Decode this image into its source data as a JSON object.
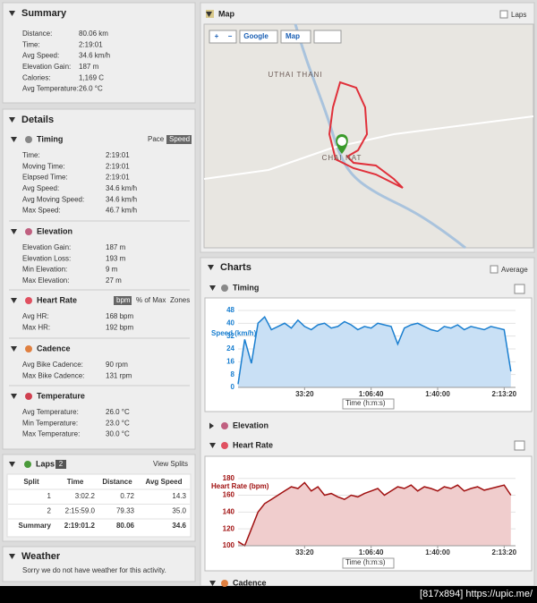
{
  "summary": {
    "title": "Summary",
    "rows": [
      {
        "label": "Distance:",
        "value": "80.06 km"
      },
      {
        "label": "Time:",
        "value": "2:19:01"
      },
      {
        "label": "Avg Speed:",
        "value": "34.6 km/h"
      },
      {
        "label": "Elevation Gain:",
        "value": "187 m"
      },
      {
        "label": "Calories:",
        "value": "1,169 C"
      },
      {
        "label": "Avg Temperature:",
        "value": "26.0 °C"
      }
    ]
  },
  "details": {
    "title": "Details",
    "sections": [
      {
        "title": "Timing",
        "options": [
          "Pace",
          "Speed"
        ],
        "rows": [
          {
            "label": "Time:",
            "value": "2:19:01"
          },
          {
            "label": "Moving Time:",
            "value": "2:19:01"
          },
          {
            "label": "Elapsed Time:",
            "value": "2:19:01"
          },
          {
            "label": "Avg Speed:",
            "value": "34.6 km/h"
          },
          {
            "label": "Avg Moving Speed:",
            "value": "34.6 km/h"
          },
          {
            "label": "Max Speed:",
            "value": "46.7 km/h"
          }
        ]
      },
      {
        "title": "Elevation",
        "options": [],
        "rows": [
          {
            "label": "Elevation Gain:",
            "value": "187 m"
          },
          {
            "label": "Elevation Loss:",
            "value": "193 m"
          },
          {
            "label": "Min Elevation:",
            "value": "9 m"
          },
          {
            "label": "Max Elevation:",
            "value": "27 m"
          }
        ]
      },
      {
        "title": "Heart Rate",
        "options": [
          "bpm",
          "% of Max",
          "Zones"
        ],
        "rows": [
          {
            "label": "Avg HR:",
            "value": "168 bpm"
          },
          {
            "label": "Max HR:",
            "value": "192 bpm"
          }
        ]
      },
      {
        "title": "Cadence",
        "options": [],
        "rows": [
          {
            "label": "Avg Bike Cadence:",
            "value": "90 rpm"
          },
          {
            "label": "Max Bike Cadence:",
            "value": "131 rpm"
          }
        ]
      },
      {
        "title": "Temperature",
        "options": [],
        "rows": [
          {
            "label": "Avg Temperature:",
            "value": "26.0 °C"
          },
          {
            "label": "Min Temperature:",
            "value": "23.0 °C"
          },
          {
            "label": "Max Temperature:",
            "value": "30.0 °C"
          }
        ]
      }
    ]
  },
  "laps": {
    "title": "Laps",
    "count": 2,
    "link": "View Splits",
    "columns": [
      "Split",
      "Time",
      "Distance",
      "Avg Speed"
    ],
    "rows": [
      [
        "1",
        "3:02.2",
        "0.72",
        "14.3"
      ],
      [
        "2",
        "2:15:59.0",
        "79.33",
        "35.0"
      ],
      [
        "Summary",
        "2:19:01.2",
        "80.06",
        "34.6"
      ]
    ]
  },
  "weather": {
    "title": "Weather",
    "message": "Sorry we do not have weather for this activity."
  },
  "map": {
    "title": "Map",
    "laps_label": "Laps",
    "controls": [
      "+",
      "−",
      "Google",
      "Map"
    ],
    "places": [
      "UTHAI THANI",
      "CHAI NAT"
    ]
  },
  "charts": {
    "title": "Charts",
    "average_label": "Average",
    "sections": [
      "Timing",
      "Elevation",
      "Heart Rate",
      "Cadence"
    ]
  },
  "chart_data": [
    {
      "type": "area",
      "ylabel": "Speed (km/h)",
      "xlabel": "Time (h:m:s)",
      "color": "#1a7fd0",
      "fill": "#c9e0f5",
      "x": [
        0,
        200,
        400,
        600,
        800,
        1000,
        1200,
        1400,
        1600,
        1800,
        2000,
        2200,
        2400,
        2600,
        2800,
        3000,
        3200,
        3400,
        3600,
        3800,
        4000,
        4200,
        4400,
        4600,
        4800,
        5000,
        5200,
        5400,
        5600,
        5800,
        6000,
        6200,
        6400,
        6600,
        6800,
        7000,
        7200,
        7400,
        7600,
        7800,
        8000,
        8200
      ],
      "values": [
        2,
        30,
        15,
        40,
        44,
        36,
        38,
        40,
        37,
        42,
        38,
        36,
        39,
        40,
        37,
        38,
        41,
        39,
        36,
        38,
        37,
        40,
        39,
        38,
        27,
        37,
        39,
        40,
        38,
        36,
        35,
        38,
        37,
        39,
        36,
        38,
        37,
        36,
        38,
        37,
        36,
        10
      ],
      "xlim": [
        0,
        8341
      ],
      "xticks": [
        {
          "value": 2000,
          "label": "33:20"
        },
        {
          "value": 4000,
          "label": "1:06:40"
        },
        {
          "value": 6000,
          "label": "1:40:00"
        },
        {
          "value": 8000,
          "label": "2:13:20"
        }
      ],
      "ylim": [
        0,
        48
      ],
      "yticks": [
        0,
        8,
        16,
        24,
        32,
        40,
        48
      ],
      "grid": true
    },
    {
      "type": "area",
      "ylabel": "Heart Rate (bpm)",
      "xlabel": "Time (h:m:s)",
      "color": "#a01010",
      "fill": "#f0cdcd",
      "x": [
        0,
        200,
        400,
        600,
        800,
        1000,
        1200,
        1400,
        1600,
        1800,
        2000,
        2200,
        2400,
        2600,
        2800,
        3000,
        3200,
        3400,
        3600,
        3800,
        4000,
        4200,
        4400,
        4600,
        4800,
        5000,
        5200,
        5400,
        5600,
        5800,
        6000,
        6200,
        6400,
        6600,
        6800,
        7000,
        7200,
        7400,
        7600,
        7800,
        8000,
        8200
      ],
      "values": [
        105,
        100,
        120,
        140,
        150,
        155,
        160,
        165,
        170,
        168,
        175,
        165,
        170,
        160,
        162,
        158,
        155,
        160,
        158,
        162,
        165,
        168,
        160,
        165,
        170,
        168,
        172,
        165,
        170,
        168,
        165,
        170,
        168,
        172,
        165,
        168,
        170,
        166,
        168,
        170,
        172,
        160
      ],
      "xlim": [
        0,
        8341
      ],
      "xticks": [
        {
          "value": 2000,
          "label": "33:20"
        },
        {
          "value": 4000,
          "label": "1:06:40"
        },
        {
          "value": 6000,
          "label": "1:40:00"
        },
        {
          "value": 8000,
          "label": "2:13:20"
        }
      ],
      "ylim": [
        100,
        185
      ],
      "yticks": [
        100,
        120,
        140,
        160,
        180
      ],
      "grid": true
    }
  ],
  "watermark": "[817x894] https://upic.me/"
}
